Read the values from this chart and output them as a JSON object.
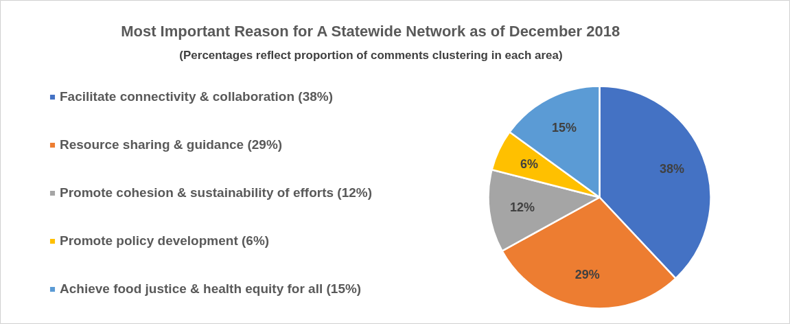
{
  "chart_data": {
    "type": "pie",
    "title": "Most Important Reason for A Statewide Network as of December 2018",
    "subtitle": "(Percentages reflect proportion of comments clustering in each area)",
    "categories": [
      "Facilitate connectivity & collaboration (38%)",
      "Resource sharing & guidance (29%)",
      "Promote cohesion & sustainability of efforts (12%)",
      "Promote policy development (6%)",
      "Achieve food justice & health equity for all (15%)"
    ],
    "values": [
      38,
      29,
      12,
      6,
      15
    ],
    "colors": [
      "#4472c4",
      "#ed7d31",
      "#a5a5a5",
      "#ffc000",
      "#5b9bd5"
    ],
    "value_labels": [
      "38%",
      "29%",
      "12%",
      "6%",
      "15%"
    ],
    "legend": "left"
  }
}
